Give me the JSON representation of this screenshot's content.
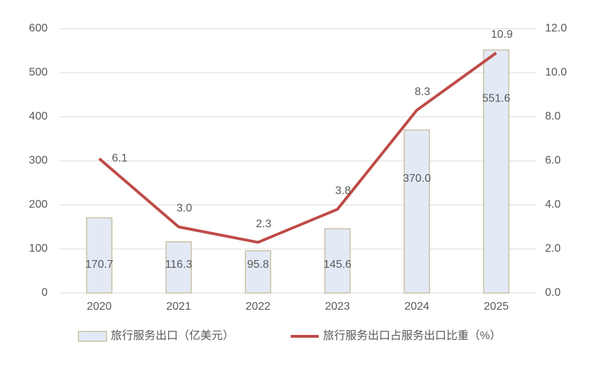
{
  "chart_data": {
    "type": "bar_line",
    "categories": [
      "2020",
      "2021",
      "2022",
      "2023",
      "2024",
      "2025"
    ],
    "series": [
      {
        "name": "旅行服务出口（亿美元）",
        "type": "bar",
        "color": "#e3eaf5",
        "edge_color": "#c9c1a3",
        "values": [
          170.7,
          116.3,
          95.8,
          145.6,
          370.0,
          551.6
        ],
        "value_labels": [
          "170.7",
          "116.3",
          "95.8",
          "145.6",
          "370.0",
          "551.6"
        ]
      },
      {
        "name": "旅行服务出口占服务出口比重（%）",
        "type": "line",
        "axis": "y2",
        "color": "#bf4a47",
        "values": [
          6.1,
          3.0,
          2.3,
          3.8,
          8.3,
          10.9
        ],
        "value_labels": [
          "6.1",
          "3.0",
          "2.3",
          "3.8",
          "8.3",
          "10.9"
        ]
      }
    ],
    "ylim": [
      0,
      600
    ],
    "yticks": [
      0,
      100,
      200,
      300,
      400,
      500,
      600
    ],
    "y2lim": [
      0,
      12
    ],
    "y2ticks": [
      {
        "value": 0,
        "label": "0.0"
      },
      {
        "value": 2,
        "label": "2.0"
      },
      {
        "value": 4,
        "label": "4.0"
      },
      {
        "value": 6,
        "label": "6.0"
      },
      {
        "value": 8,
        "label": "8.0"
      },
      {
        "value": 10,
        "label": "10.0"
      },
      {
        "value": 12,
        "label": "12.0"
      }
    ],
    "grid": true,
    "legend": "bottom"
  }
}
